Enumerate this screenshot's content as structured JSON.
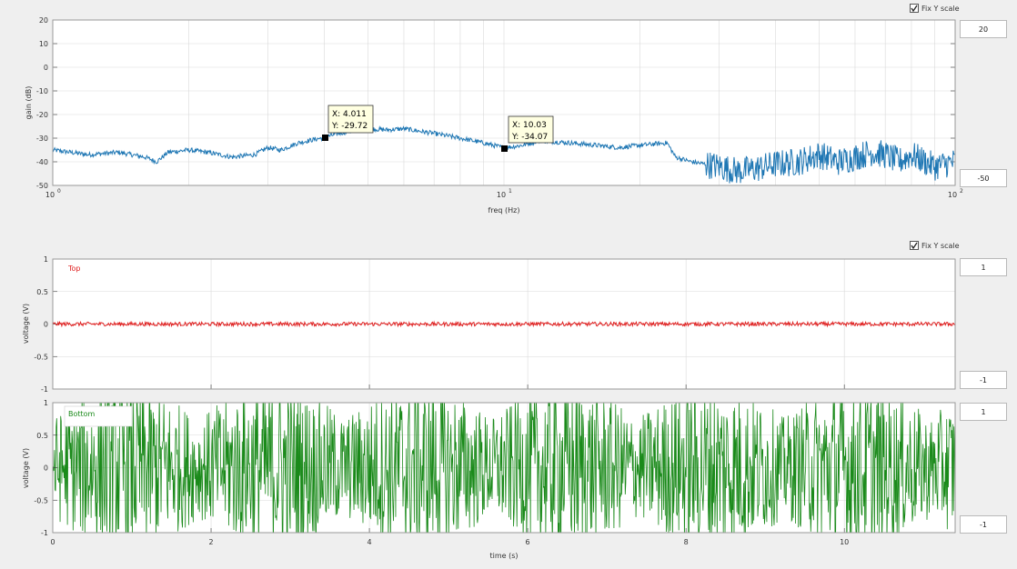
{
  "freq_panel": {
    "fix_label": "Fix Y scale",
    "fix_checked": true,
    "ymax_value": "20",
    "ymin_value": "-50",
    "datatips": [
      {
        "x_text": "X: 4.011",
        "y_text": "Y: -29.72"
      },
      {
        "x_text": "X: 10.03",
        "y_text": "Y: -34.07"
      }
    ]
  },
  "time_panel": {
    "fix_label": "Fix Y scale",
    "fix_checked": true,
    "top_ymax_value": "1",
    "top_ymin_value": "-1",
    "bottom_ymax_value": "1",
    "bottom_ymin_value": "-1"
  },
  "colors": {
    "gain": "#1f77b4",
    "top": "#e02020",
    "bottom": "#1a8a1a",
    "grid": "#d9d9d9",
    "axes_bg": "#ffffff",
    "window_bg": "#efefef"
  },
  "chart_data": [
    {
      "type": "line",
      "name": "gain plot",
      "xlabel": "freq (Hz)",
      "ylabel": "gain (dB)",
      "xscale": "log",
      "xlim": [
        1,
        100
      ],
      "ylim": [
        -50,
        20
      ],
      "xticks": [
        1,
        10,
        100
      ],
      "xtick_labels": [
        "10",
        "10",
        "10"
      ],
      "xtick_exponents": [
        "0",
        "1",
        "2"
      ],
      "yticks": [
        -50,
        -40,
        -30,
        -20,
        -10,
        0,
        10,
        20
      ],
      "ytick_labels": [
        "-50",
        "-40",
        "-30",
        "-20",
        "-10",
        "0",
        "10",
        "20"
      ],
      "grid": true,
      "series": [
        {
          "x": [
            1.0,
            1.2,
            1.4,
            1.6,
            1.7,
            1.8,
            2.0,
            2.2,
            2.5,
            2.8,
            3.0,
            3.2,
            3.5,
            3.7,
            4.0,
            4.3,
            4.6,
            5.0,
            5.5,
            6.0,
            7.0,
            8.0,
            9.0,
            10.0,
            11.0,
            12.0,
            14.0,
            16.0,
            18.0,
            20.0,
            23.0,
            24.0,
            26.0,
            28.0,
            30.0,
            33.0,
            36.0,
            40.0,
            45.0,
            50.0,
            55.0,
            60.0,
            65.0,
            70.0,
            75.0,
            80.0,
            90.0,
            100.0
          ],
          "y": [
            -35,
            -37,
            -36,
            -38,
            -40,
            -36,
            -35,
            -36,
            -38,
            -37,
            -34,
            -35,
            -32,
            -31,
            -29.7,
            -28,
            -27,
            -26,
            -26.5,
            -26,
            -28,
            -30,
            -32,
            -34.1,
            -33,
            -31,
            -32,
            -33,
            -34,
            -33,
            -32,
            -38,
            -40,
            -41,
            -42,
            -44,
            -43,
            -41,
            -40,
            -37,
            -40,
            -38,
            -36,
            -37,
            -40,
            -37,
            -42,
            -40
          ]
        }
      ],
      "noise_from_freq": 28,
      "noise_amplitude_db": 6
    },
    {
      "type": "line",
      "name": "time plot top",
      "xlabel": "",
      "ylabel": "voltage (V)",
      "xlim": [
        0,
        11.4
      ],
      "ylim": [
        -1,
        1
      ],
      "yticks": [
        -1,
        -0.5,
        0,
        0.5,
        1
      ],
      "ytick_labels": [
        "-1",
        "-0.5",
        "0",
        "0.5",
        "1"
      ],
      "xticks": [
        0,
        2,
        4,
        6,
        8,
        10
      ],
      "legend": "Top",
      "grid": true,
      "series": [
        {
          "name": "Top",
          "mean": 0.0,
          "amplitude": 0.03,
          "duration_s": 11.4
        }
      ]
    },
    {
      "type": "line",
      "name": "time plot bottom",
      "xlabel": "time (s)",
      "ylabel": "voltage (V)",
      "xlim": [
        0,
        11.4
      ],
      "ylim": [
        -1,
        1
      ],
      "xticks": [
        0,
        2,
        4,
        6,
        8,
        10
      ],
      "xtick_labels": [
        "0",
        "2",
        "4",
        "6",
        "8",
        "10"
      ],
      "yticks": [
        -1,
        -0.5,
        0,
        0.5,
        1
      ],
      "ytick_labels": [
        "-1",
        "-0.5",
        "0",
        "0.5",
        "1"
      ],
      "legend": "Bottom",
      "grid": true,
      "series": [
        {
          "name": "Bottom",
          "mean": 0.0,
          "amplitude": 1.3,
          "duration_s": 11.4
        }
      ]
    }
  ]
}
